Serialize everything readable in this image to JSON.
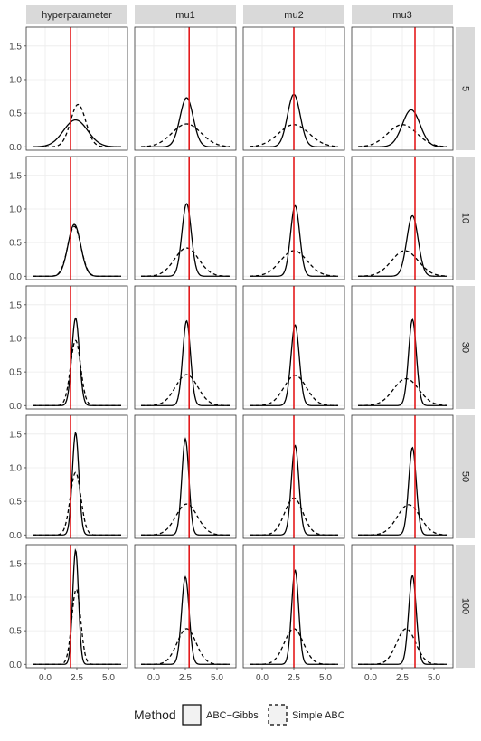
{
  "chart_data": {
    "type": "line",
    "description_kind": "faceted density plot",
    "columns": [
      "hyperparameter",
      "mu1",
      "mu2",
      "mu3"
    ],
    "rows": [
      "5",
      "10",
      "30",
      "50",
      "100"
    ],
    "x_ticks": [
      0.0,
      2.5,
      5.0
    ],
    "x_tick_labels": [
      "0.0",
      "2.5",
      "5.0"
    ],
    "xlim": [
      -1.5,
      6.5
    ],
    "y_ticks": [
      0.0,
      0.5,
      1.0,
      1.5
    ],
    "y_tick_labels": [
      "0.0",
      "0.5",
      "1.0",
      "1.5"
    ],
    "ylim": [
      -0.05,
      1.78
    ],
    "true_values": {
      "hyperparameter": 2.0,
      "mu1": 2.8,
      "mu2": 2.5,
      "mu3": 3.5
    },
    "legend": {
      "title": "Method",
      "entries": [
        {
          "name": "ABC−Gibbs",
          "linetype": "solid"
        },
        {
          "name": "Simple ABC",
          "linetype": "dashed"
        }
      ]
    },
    "colors": {
      "true_line": "#e41a1c",
      "strip_bg": "#d9d9d9",
      "panel_border": "#333333",
      "grid": "#ebebeb",
      "density": "#000000"
    },
    "series": [
      {
        "column": "hyperparameter",
        "row": "5",
        "method": "ABC−Gibbs",
        "mean": 2.4,
        "sd": 0.95,
        "peak": 0.4
      },
      {
        "column": "hyperparameter",
        "row": "5",
        "method": "Simple ABC",
        "mean": 2.6,
        "sd": 0.6,
        "peak": 0.63
      },
      {
        "column": "mu1",
        "row": "5",
        "method": "ABC−Gibbs",
        "mean": 2.6,
        "sd": 0.52,
        "peak": 0.73
      },
      {
        "column": "mu1",
        "row": "5",
        "method": "Simple ABC",
        "mean": 2.6,
        "sd": 1.15,
        "peak": 0.34
      },
      {
        "column": "mu2",
        "row": "5",
        "method": "ABC−Gibbs",
        "mean": 2.5,
        "sd": 0.5,
        "peak": 0.78
      },
      {
        "column": "mu2",
        "row": "5",
        "method": "Simple ABC",
        "mean": 2.5,
        "sd": 1.2,
        "peak": 0.33
      },
      {
        "column": "mu3",
        "row": "5",
        "method": "ABC−Gibbs",
        "mean": 3.2,
        "sd": 0.7,
        "peak": 0.55
      },
      {
        "column": "mu3",
        "row": "5",
        "method": "Simple ABC",
        "mean": 2.5,
        "sd": 1.15,
        "peak": 0.33
      },
      {
        "column": "hyperparameter",
        "row": "10",
        "method": "ABC−Gibbs",
        "mean": 2.3,
        "sd": 0.5,
        "peak": 0.77
      },
      {
        "column": "hyperparameter",
        "row": "10",
        "method": "Simple ABC",
        "mean": 2.3,
        "sd": 0.52,
        "peak": 0.74
      },
      {
        "column": "mu1",
        "row": "10",
        "method": "ABC−Gibbs",
        "mean": 2.6,
        "sd": 0.37,
        "peak": 1.08
      },
      {
        "column": "mu1",
        "row": "10",
        "method": "Simple ABC",
        "mean": 2.6,
        "sd": 0.95,
        "peak": 0.42
      },
      {
        "column": "mu2",
        "row": "10",
        "method": "ABC−Gibbs",
        "mean": 2.6,
        "sd": 0.36,
        "peak": 1.05
      },
      {
        "column": "mu2",
        "row": "10",
        "method": "Simple ABC",
        "mean": 2.5,
        "sd": 1.05,
        "peak": 0.38
      },
      {
        "column": "mu3",
        "row": "10",
        "method": "ABC−Gibbs",
        "mean": 3.3,
        "sd": 0.45,
        "peak": 0.9
      },
      {
        "column": "mu3",
        "row": "10",
        "method": "Simple ABC",
        "mean": 2.7,
        "sd": 1.05,
        "peak": 0.38
      },
      {
        "column": "hyperparameter",
        "row": "30",
        "method": "ABC−Gibbs",
        "mean": 2.4,
        "sd": 0.3,
        "peak": 1.3
      },
      {
        "column": "hyperparameter",
        "row": "30",
        "method": "Simple ABC",
        "mean": 2.4,
        "sd": 0.4,
        "peak": 0.97
      },
      {
        "column": "mu1",
        "row": "30",
        "method": "ABC−Gibbs",
        "mean": 2.6,
        "sd": 0.31,
        "peak": 1.26
      },
      {
        "column": "mu1",
        "row": "30",
        "method": "Simple ABC",
        "mean": 2.6,
        "sd": 0.88,
        "peak": 0.46
      },
      {
        "column": "mu2",
        "row": "30",
        "method": "ABC−Gibbs",
        "mean": 2.6,
        "sd": 0.33,
        "peak": 1.2
      },
      {
        "column": "mu2",
        "row": "30",
        "method": "Simple ABC",
        "mean": 2.6,
        "sd": 0.88,
        "peak": 0.45
      },
      {
        "column": "mu3",
        "row": "30",
        "method": "ABC−Gibbs",
        "mean": 3.3,
        "sd": 0.31,
        "peak": 1.28
      },
      {
        "column": "mu3",
        "row": "30",
        "method": "Simple ABC",
        "mean": 2.8,
        "sd": 1.0,
        "peak": 0.4
      },
      {
        "column": "hyperparameter",
        "row": "50",
        "method": "ABC−Gibbs",
        "mean": 2.4,
        "sd": 0.26,
        "peak": 1.52
      },
      {
        "column": "hyperparameter",
        "row": "50",
        "method": "Simple ABC",
        "mean": 2.4,
        "sd": 0.42,
        "peak": 0.93
      },
      {
        "column": "mu1",
        "row": "50",
        "method": "ABC−Gibbs",
        "mean": 2.5,
        "sd": 0.28,
        "peak": 1.43
      },
      {
        "column": "mu1",
        "row": "50",
        "method": "Simple ABC",
        "mean": 2.6,
        "sd": 0.85,
        "peak": 0.46
      },
      {
        "column": "mu2",
        "row": "50",
        "method": "ABC−Gibbs",
        "mean": 2.6,
        "sd": 0.3,
        "peak": 1.33
      },
      {
        "column": "mu2",
        "row": "50",
        "method": "Simple ABC",
        "mean": 2.5,
        "sd": 0.72,
        "peak": 0.55
      },
      {
        "column": "mu3",
        "row": "50",
        "method": "ABC−Gibbs",
        "mean": 3.3,
        "sd": 0.3,
        "peak": 1.3
      },
      {
        "column": "mu3",
        "row": "50",
        "method": "Simple ABC",
        "mean": 3.0,
        "sd": 0.9,
        "peak": 0.45
      },
      {
        "column": "hyperparameter",
        "row": "100",
        "method": "ABC−Gibbs",
        "mean": 2.4,
        "sd": 0.23,
        "peak": 1.7
      },
      {
        "column": "hyperparameter",
        "row": "100",
        "method": "Simple ABC",
        "mean": 2.45,
        "sd": 0.35,
        "peak": 1.12
      },
      {
        "column": "mu1",
        "row": "100",
        "method": "ABC−Gibbs",
        "mean": 2.5,
        "sd": 0.3,
        "peak": 1.3
      },
      {
        "column": "mu1",
        "row": "100",
        "method": "Simple ABC",
        "mean": 2.6,
        "sd": 0.75,
        "peak": 0.53
      },
      {
        "column": "mu2",
        "row": "100",
        "method": "ABC−Gibbs",
        "mean": 2.6,
        "sd": 0.28,
        "peak": 1.4
      },
      {
        "column": "mu2",
        "row": "100",
        "method": "Simple ABC",
        "mean": 2.5,
        "sd": 0.75,
        "peak": 0.53
      },
      {
        "column": "mu3",
        "row": "100",
        "method": "ABC−Gibbs",
        "mean": 3.3,
        "sd": 0.3,
        "peak": 1.32
      },
      {
        "column": "mu3",
        "row": "100",
        "method": "Simple ABC",
        "mean": 2.8,
        "sd": 0.75,
        "peak": 0.53
      }
    ]
  }
}
